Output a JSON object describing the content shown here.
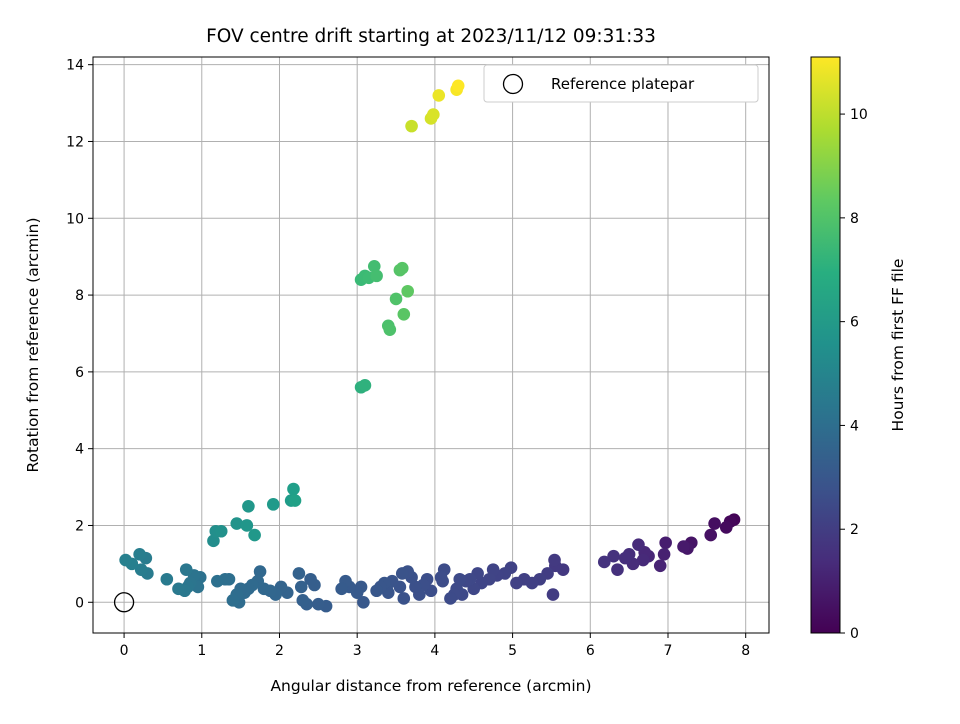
{
  "chart_data": {
    "type": "scatter",
    "title": "FOV centre drift starting at 2023/11/12 09:31:33",
    "xlabel": "Angular distance from reference (arcmin)",
    "ylabel": "Rotation from reference (arcmin)",
    "xlim": [
      -0.4,
      8.3
    ],
    "ylim": [
      -0.8,
      14.2
    ],
    "x_ticks": [
      0,
      1,
      2,
      3,
      4,
      5,
      6,
      7,
      8
    ],
    "y_ticks": [
      0,
      2,
      4,
      6,
      8,
      10,
      12,
      14
    ],
    "grid": true,
    "legend": {
      "position": "top-right",
      "entries": [
        "Reference platepar"
      ]
    },
    "reference_point": {
      "x": 0,
      "y": 0,
      "name": "Reference platepar"
    },
    "colorbar": {
      "label": "Hours from first FF file",
      "colormap": "viridis",
      "range": [
        0,
        11.1
      ],
      "ticks": [
        0,
        2,
        4,
        6,
        8,
        10
      ]
    },
    "series": [
      {
        "x": [
          7.85,
          7.8,
          7.75,
          7.6,
          7.55,
          7.3,
          7.25,
          7.2,
          6.97,
          6.95,
          6.9,
          6.75,
          6.7,
          6.68,
          6.62,
          6.55,
          6.5,
          6.45,
          6.35,
          6.3,
          6.18,
          5.65,
          5.55,
          5.54,
          5.52,
          5.45,
          5.35,
          5.25,
          5.15,
          5.05,
          4.98,
          4.9,
          4.8,
          4.75,
          4.7,
          4.6,
          4.55,
          4.5,
          4.45,
          4.4,
          4.35,
          4.32,
          4.28,
          4.25,
          4.2,
          4.12,
          4.1,
          4.08,
          3.95,
          3.9,
          3.85,
          3.8,
          3.75,
          3.7,
          3.65,
          3.6,
          3.58,
          3.55,
          3.45,
          3.4,
          3.38,
          3.35,
          3.3,
          3.25,
          3.08,
          3.05,
          3.0,
          2.9,
          2.85,
          2.8,
          2.6,
          2.5,
          2.45,
          2.4,
          2.35,
          2.3,
          2.28,
          2.25,
          2.1,
          2.02,
          1.95,
          1.88,
          1.8,
          1.75,
          1.72,
          1.65,
          1.6,
          1.55,
          1.5,
          1.48,
          1.45,
          1.4,
          1.35,
          1.3,
          1.2,
          0.98,
          0.95,
          0.9,
          0.85,
          0.82,
          0.8,
          0.78,
          0.7,
          0.55,
          0.3,
          0.28,
          0.22,
          0.2,
          0.1,
          0.02,
          1.15,
          1.18,
          1.25,
          1.45,
          1.58,
          1.6,
          1.68,
          1.92,
          2.15,
          2.18,
          2.2,
          3.05,
          3.1,
          3.05,
          3.1,
          3.15,
          3.22,
          3.25,
          3.4,
          3.42,
          3.5,
          3.55,
          3.58,
          3.6,
          3.65,
          3.7,
          3.95,
          3.98,
          4.05,
          4.28,
          4.3
        ],
        "y": [
          2.15,
          2.1,
          1.95,
          2.05,
          1.75,
          1.55,
          1.4,
          1.45,
          1.55,
          1.25,
          0.95,
          1.2,
          1.3,
          1.1,
          1.5,
          1.0,
          1.25,
          1.15,
          0.85,
          1.2,
          1.05,
          0.85,
          0.95,
          1.1,
          0.2,
          0.75,
          0.6,
          0.5,
          0.6,
          0.5,
          0.9,
          0.75,
          0.7,
          0.85,
          0.6,
          0.5,
          0.75,
          0.35,
          0.6,
          0.55,
          0.2,
          0.6,
          0.35,
          0.2,
          0.1,
          0.85,
          0.55,
          0.65,
          0.3,
          0.6,
          0.45,
          0.2,
          0.4,
          0.65,
          0.8,
          0.1,
          0.75,
          0.4,
          0.55,
          0.25,
          0.35,
          0.5,
          0.4,
          0.3,
          0.0,
          0.4,
          0.25,
          0.4,
          0.55,
          0.35,
          -0.1,
          -0.05,
          0.45,
          0.6,
          -0.05,
          0.05,
          0.4,
          0.75,
          0.25,
          0.4,
          0.2,
          0.3,
          0.35,
          0.8,
          0.55,
          0.45,
          0.35,
          0.25,
          0.35,
          0.0,
          0.2,
          0.05,
          0.6,
          0.6,
          0.55,
          0.65,
          0.4,
          0.7,
          0.5,
          0.4,
          0.85,
          0.3,
          0.35,
          0.6,
          0.75,
          1.15,
          0.85,
          1.25,
          1.0,
          1.1,
          1.6,
          1.85,
          1.85,
          2.05,
          2.0,
          2.5,
          1.75,
          2.55,
          2.65,
          2.95,
          2.65,
          5.6,
          5.65,
          8.4,
          8.5,
          8.45,
          8.75,
          8.5,
          7.2,
          7.1,
          7.9,
          8.65,
          8.7,
          7.5,
          8.1,
          12.4,
          12.6,
          12.7,
          13.2,
          13.35,
          13.45
        ],
        "hours": [
          0.1,
          0.2,
          0.3,
          0.4,
          0.5,
          0.6,
          0.7,
          0.8,
          0.9,
          1.0,
          1.1,
          1.2,
          1.25,
          1.3,
          1.35,
          1.4,
          1.45,
          1.5,
          1.55,
          1.6,
          1.65,
          1.8,
          1.85,
          1.9,
          1.95,
          2.0,
          2.05,
          2.1,
          2.12,
          2.15,
          2.18,
          2.2,
          2.22,
          2.25,
          2.28,
          2.3,
          2.32,
          2.35,
          2.38,
          2.4,
          2.42,
          2.45,
          2.48,
          2.5,
          2.52,
          2.55,
          2.58,
          2.6,
          2.62,
          2.65,
          2.68,
          2.7,
          2.72,
          2.75,
          2.78,
          2.8,
          2.82,
          2.85,
          2.88,
          2.9,
          2.92,
          2.95,
          2.98,
          3.0,
          3.05,
          3.08,
          3.1,
          3.12,
          3.15,
          3.18,
          3.2,
          3.25,
          3.28,
          3.3,
          3.35,
          3.38,
          3.4,
          3.45,
          3.5,
          3.55,
          3.6,
          3.65,
          3.7,
          3.72,
          3.75,
          3.78,
          3.8,
          3.82,
          3.85,
          3.9,
          3.95,
          4.0,
          4.02,
          4.05,
          4.1,
          4.15,
          4.2,
          4.25,
          4.3,
          4.35,
          4.4,
          4.45,
          4.5,
          4.55,
          4.6,
          4.65,
          4.7,
          4.75,
          4.8,
          4.85,
          5.4,
          5.5,
          5.6,
          5.7,
          5.8,
          5.85,
          5.9,
          6.0,
          6.1,
          6.2,
          6.3,
          7.0,
          7.1,
          7.5,
          7.55,
          7.6,
          7.7,
          7.75,
          7.9,
          7.95,
          8.0,
          8.1,
          8.15,
          8.2,
          8.3,
          10.2,
          10.4,
          10.5,
          10.8,
          11.0,
          11.1
        ]
      }
    ]
  }
}
